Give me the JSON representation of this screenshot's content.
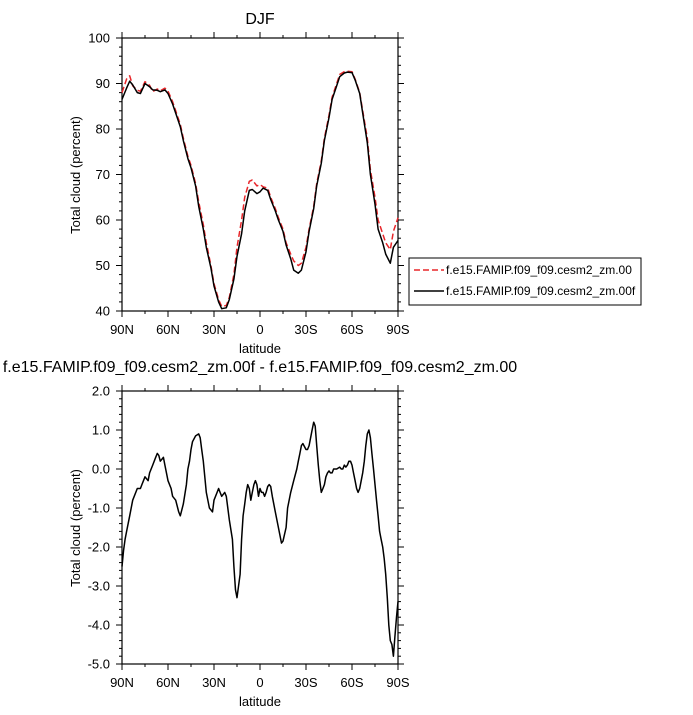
{
  "chart_data": [
    {
      "type": "line",
      "title": "DJF",
      "xlabel": "latitude",
      "ylabel": "Total cloud (percent)",
      "xlim": [
        90,
        -90
      ],
      "ylim": [
        40,
        100
      ],
      "xtick_values": [
        90,
        60,
        30,
        0,
        -30,
        -60,
        -90
      ],
      "xtick_labels": [
        "90N",
        "60N",
        "30N",
        "0",
        "30S",
        "60S",
        "90S"
      ],
      "ytick_values": [
        40,
        50,
        60,
        70,
        80,
        90,
        100
      ],
      "ytick_labels": [
        "40",
        "50",
        "60",
        "70",
        "80",
        "90",
        "100"
      ],
      "legend_position": "right",
      "colors": {
        "series_0": "#e8262a",
        "series_1": "#000000"
      },
      "series": [
        {
          "name": "f.e15.FAMIP.f09_f09.cesm2_zm.00",
          "style": "dashed",
          "x": [
            90,
            87,
            85,
            83,
            80,
            78,
            75,
            72,
            70,
            67,
            65,
            62,
            60,
            57,
            55,
            52,
            50,
            47,
            45,
            42,
            40,
            37,
            35,
            32,
            30,
            27,
            25,
            22,
            20,
            17,
            15,
            12,
            10,
            7,
            5,
            2,
            0,
            -2,
            -5,
            -7,
            -10,
            -12,
            -15,
            -17,
            -20,
            -22,
            -25,
            -27,
            -30,
            -32,
            -35,
            -37,
            -40,
            -42,
            -45,
            -47,
            -50,
            -52,
            -55,
            -57,
            -60,
            -62,
            -65,
            -67,
            -70,
            -72,
            -75,
            -77,
            -80,
            -82,
            -85,
            -87,
            -90
          ],
          "y": [
            88.0,
            91.0,
            91.7,
            89.5,
            88.5,
            88.3,
            90.4,
            89.6,
            88.2,
            88.8,
            88.4,
            89.0,
            88.3,
            86.0,
            84.0,
            81.0,
            78.0,
            74.0,
            72.0,
            68.0,
            64.0,
            59.0,
            55.0,
            50.0,
            46.0,
            42.5,
            41.0,
            41.2,
            43.0,
            48.0,
            54.0,
            60.0,
            65.0,
            68.5,
            68.8,
            67.5,
            67.8,
            67.3,
            67.0,
            65.0,
            62.5,
            60.5,
            58.0,
            55.0,
            52.5,
            51.0,
            50.0,
            50.5,
            54.0,
            58.0,
            63.0,
            68.0,
            73.0,
            78.0,
            83.0,
            87.0,
            90.0,
            92.0,
            92.6,
            92.7,
            92.6,
            91.0,
            88.0,
            84.0,
            78.0,
            71.0,
            65.0,
            60.0,
            57.0,
            55.0,
            53.5,
            57.5,
            60.5
          ]
        },
        {
          "name": "f.e15.FAMIP.f09_f09.cesm2_zm.00f",
          "style": "solid",
          "x": [
            90,
            87,
            85,
            83,
            80,
            78,
            75,
            72,
            70,
            67,
            65,
            62,
            60,
            57,
            55,
            52,
            50,
            47,
            45,
            42,
            40,
            37,
            35,
            32,
            30,
            27,
            25,
            22,
            20,
            17,
            15,
            12,
            10,
            7,
            5,
            2,
            0,
            -2,
            -5,
            -7,
            -10,
            -12,
            -15,
            -17,
            -20,
            -22,
            -25,
            -27,
            -30,
            -32,
            -35,
            -37,
            -40,
            -42,
            -45,
            -47,
            -50,
            -52,
            -55,
            -57,
            -60,
            -62,
            -65,
            -67,
            -70,
            -72,
            -75,
            -77,
            -80,
            -82,
            -85,
            -87,
            -90
          ],
          "y": [
            86.5,
            89.0,
            90.5,
            89.7,
            88.0,
            87.8,
            90.0,
            89.3,
            88.6,
            88.5,
            88.2,
            88.6,
            87.8,
            85.5,
            83.5,
            80.5,
            77.5,
            73.5,
            71.5,
            67.5,
            63.0,
            58.0,
            54.0,
            49.5,
            45.5,
            42.0,
            40.5,
            40.7,
            42.5,
            47.0,
            52.0,
            57.0,
            62.0,
            66.5,
            66.7,
            65.8,
            66.2,
            67.0,
            66.5,
            64.5,
            62.0,
            60.0,
            57.5,
            54.5,
            51.5,
            49.0,
            48.3,
            49.0,
            53.0,
            57.5,
            62.5,
            67.5,
            72.5,
            77.5,
            82.5,
            86.5,
            89.5,
            91.5,
            92.3,
            92.5,
            92.4,
            90.8,
            87.8,
            83.5,
            77.0,
            70.0,
            63.5,
            58.0,
            55.0,
            52.5,
            50.5,
            54.0,
            55.5
          ]
        }
      ]
    },
    {
      "type": "line",
      "title": "f.e15.FAMIP.f09_f09.cesm2_zm.00f - f.e15.FAMIP.f09_f09.cesm2_zm.00",
      "xlabel": "latitude",
      "ylabel": "Total cloud (percent)",
      "xlim": [
        90,
        -90
      ],
      "ylim": [
        -5.0,
        2.0
      ],
      "xtick_values": [
        90,
        60,
        30,
        0,
        -30,
        -60,
        -90
      ],
      "xtick_labels": [
        "90N",
        "60N",
        "30N",
        "0",
        "30S",
        "60S",
        "90S"
      ],
      "ytick_values": [
        -5.0,
        -4.0,
        -3.0,
        -2.0,
        -1.0,
        0.0,
        1.0,
        2.0
      ],
      "ytick_labels": [
        "-5.0",
        "-4.0",
        "-3.0",
        "-2.0",
        "-1.0",
        "0.0",
        "1.0",
        "2.0"
      ],
      "colors": {
        "series_0": "#000000"
      },
      "series": [
        {
          "x": [
            90,
            89,
            88,
            87,
            85,
            83,
            80,
            78,
            77,
            75,
            73,
            72,
            70,
            68,
            67,
            66,
            65,
            63,
            62,
            60,
            58,
            57,
            55,
            53,
            52,
            50,
            48,
            47,
            46,
            45,
            44,
            42,
            40,
            39,
            38,
            37,
            36,
            35,
            33,
            31,
            30,
            28,
            27,
            26,
            25,
            23,
            22,
            21,
            20,
            18,
            17,
            16,
            15,
            13,
            12,
            11,
            10,
            9,
            8,
            7,
            6,
            5,
            4,
            3,
            2,
            1,
            0,
            -1,
            -2,
            -3,
            -4,
            -5,
            -6,
            -7,
            -8,
            -10,
            -12,
            -14,
            -15,
            -17,
            -18,
            -20,
            -22,
            -24,
            -25,
            -26,
            -27,
            -28,
            -30,
            -31,
            -32,
            -33,
            -34,
            -35,
            -36,
            -37,
            -38,
            -39,
            -40,
            -41,
            -42,
            -43,
            -44,
            -45,
            -46,
            -47,
            -48,
            -50,
            -52,
            -53,
            -54,
            -55,
            -56,
            -57,
            -58,
            -59,
            -60,
            -61,
            -62,
            -63,
            -64,
            -65,
            -66,
            -67,
            -68,
            -69,
            -70,
            -71,
            -72,
            -73,
            -74,
            -75,
            -76,
            -77,
            -78,
            -79,
            -80,
            -81,
            -82,
            -83,
            -84,
            -85,
            -86,
            -87,
            -88,
            -89,
            -90
          ],
          "y": [
            -2.5,
            -2.1,
            -1.8,
            -1.6,
            -1.2,
            -0.8,
            -0.5,
            -0.5,
            -0.4,
            -0.2,
            -0.3,
            -0.1,
            0.1,
            0.3,
            0.4,
            0.35,
            0.2,
            0.3,
            0.1,
            -0.3,
            -0.5,
            -0.7,
            -0.8,
            -1.1,
            -1.2,
            -0.9,
            -0.4,
            0.0,
            0.2,
            0.5,
            0.7,
            0.85,
            0.9,
            0.8,
            0.5,
            0.2,
            -0.2,
            -0.6,
            -1.0,
            -1.1,
            -0.8,
            -0.6,
            -0.5,
            -0.6,
            -0.7,
            -0.6,
            -0.7,
            -1.0,
            -1.3,
            -1.8,
            -2.5,
            -3.1,
            -3.3,
            -2.7,
            -1.8,
            -1.2,
            -0.9,
            -0.6,
            -0.4,
            -0.5,
            -0.8,
            -0.6,
            -0.4,
            -0.3,
            -0.4,
            -0.7,
            -0.5,
            -0.6,
            -0.6,
            -0.7,
            -0.6,
            -0.45,
            -0.4,
            -0.45,
            -0.7,
            -1.1,
            -1.5,
            -1.9,
            -1.85,
            -1.5,
            -1.0,
            -0.6,
            -0.3,
            0.0,
            0.2,
            0.4,
            0.6,
            0.65,
            0.5,
            0.5,
            0.6,
            0.8,
            1.0,
            1.2,
            1.1,
            0.6,
            0.1,
            -0.3,
            -0.6,
            -0.5,
            -0.4,
            -0.2,
            -0.1,
            -0.05,
            -0.1,
            -0.1,
            0.0,
            0.0,
            0.05,
            0.0,
            0.0,
            0.1,
            0.05,
            0.1,
            0.2,
            0.2,
            0.1,
            -0.1,
            -0.3,
            -0.5,
            -0.6,
            -0.5,
            -0.3,
            -0.1,
            0.2,
            0.6,
            0.9,
            1.0,
            0.8,
            0.4,
            0.0,
            -0.4,
            -0.8,
            -1.2,
            -1.6,
            -1.8,
            -2.0,
            -2.3,
            -2.7,
            -3.3,
            -4.0,
            -4.4,
            -4.5,
            -4.8,
            -4.3,
            -3.8,
            -3.4
          ]
        }
      ]
    }
  ]
}
